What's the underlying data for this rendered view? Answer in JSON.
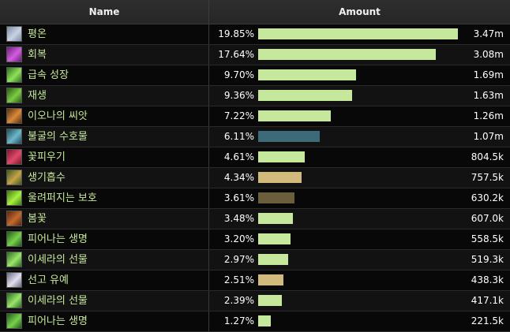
{
  "header": {
    "name": "Name",
    "amount": "Amount"
  },
  "bar_max_width_fraction": 1.0,
  "rows": [
    {
      "name": "평온",
      "pct": "19.85%",
      "amount": "3.47m",
      "fraction": 1.0,
      "bar_color": "#c5e89c",
      "icon": "tranquility-icon",
      "icon_colors": [
        "#7c8ca6",
        "#c8d2e4"
      ]
    },
    {
      "name": "회복",
      "pct": "17.64%",
      "amount": "3.08m",
      "fraction": 0.888,
      "bar_color": "#c5e89c",
      "icon": "regrowth-icon",
      "icon_colors": [
        "#6a1f7a",
        "#d25ce0"
      ]
    },
    {
      "name": "급속 성장",
      "pct": "9.70%",
      "amount": "1.69m",
      "fraction": 0.489,
      "bar_color": "#c5e89c",
      "icon": "wild-growth-icon",
      "icon_colors": [
        "#2f6e1e",
        "#8fe05a"
      ]
    },
    {
      "name": "재생",
      "pct": "9.36%",
      "amount": "1.63m",
      "fraction": 0.471,
      "bar_color": "#c5e89c",
      "icon": "rejuvenation-icon",
      "icon_colors": [
        "#2b5a14",
        "#7ccc45"
      ]
    },
    {
      "name": "이오나의 씨앗",
      "pct": "7.22%",
      "amount": "1.26m",
      "fraction": 0.363,
      "bar_color": "#c5e89c",
      "icon": "seed-icon",
      "icon_colors": [
        "#5a2e12",
        "#d88a3a"
      ]
    },
    {
      "name": "불굴의 수호물",
      "pct": "6.11%",
      "amount": "1.07m",
      "fraction": 0.308,
      "bar_color": "#3c6a78",
      "icon": "guardian-icon",
      "icon_colors": [
        "#1e4e5e",
        "#6fb7c8"
      ]
    },
    {
      "name": "꽃피우기",
      "pct": "4.61%",
      "amount": "804.5k",
      "fraction": 0.232,
      "bar_color": "#c5e89c",
      "icon": "bloom-icon",
      "icon_colors": [
        "#7a1630",
        "#e04a6a"
      ]
    },
    {
      "name": "생기흡수",
      "pct": "4.34%",
      "amount": "757.5k",
      "fraction": 0.218,
      "bar_color": "#d2b97c",
      "icon": "leech-icon",
      "icon_colors": [
        "#3a5a1a",
        "#c7a34a"
      ]
    },
    {
      "name": "울려퍼지는 보호",
      "pct": "3.61%",
      "amount": "630.2k",
      "fraction": 0.182,
      "bar_color": "#6a5e3c",
      "icon": "ward-icon",
      "icon_colors": [
        "#3e7a12",
        "#a8f040"
      ]
    },
    {
      "name": "봄꽃",
      "pct": "3.48%",
      "amount": "607.0k",
      "fraction": 0.175,
      "bar_color": "#c5e89c",
      "icon": "spring-blossom-icon",
      "icon_colors": [
        "#5a2410",
        "#c46a2a"
      ]
    },
    {
      "name": "피어나는 생명",
      "pct": "3.20%",
      "amount": "558.5k",
      "fraction": 0.161,
      "bar_color": "#c5e89c",
      "icon": "lifebloom-icon",
      "icon_colors": [
        "#1e5a1a",
        "#78d04a"
      ]
    },
    {
      "name": "이세라의 선물",
      "pct": "2.97%",
      "amount": "519.3k",
      "fraction": 0.15,
      "bar_color": "#c5e89c",
      "icon": "ysera-gift-icon",
      "icon_colors": [
        "#2c6a20",
        "#9ae66a"
      ]
    },
    {
      "name": "선고 유예",
      "pct": "2.51%",
      "amount": "438.3k",
      "fraction": 0.126,
      "bar_color": "#d2b97c",
      "icon": "reprieve-icon",
      "icon_colors": [
        "#6a6a80",
        "#e0e0f0"
      ]
    },
    {
      "name": "이세라의 선물",
      "pct": "2.39%",
      "amount": "417.1k",
      "fraction": 0.12,
      "bar_color": "#c5e89c",
      "icon": "ysera-gift-icon",
      "icon_colors": [
        "#2c6a20",
        "#9ae66a"
      ]
    },
    {
      "name": "피어나는 생명",
      "pct": "1.27%",
      "amount": "221.5k",
      "fraction": 0.064,
      "bar_color": "#c5e89c",
      "icon": "lifebloom-icon",
      "icon_colors": [
        "#1e5a1a",
        "#78d04a"
      ]
    }
  ]
}
